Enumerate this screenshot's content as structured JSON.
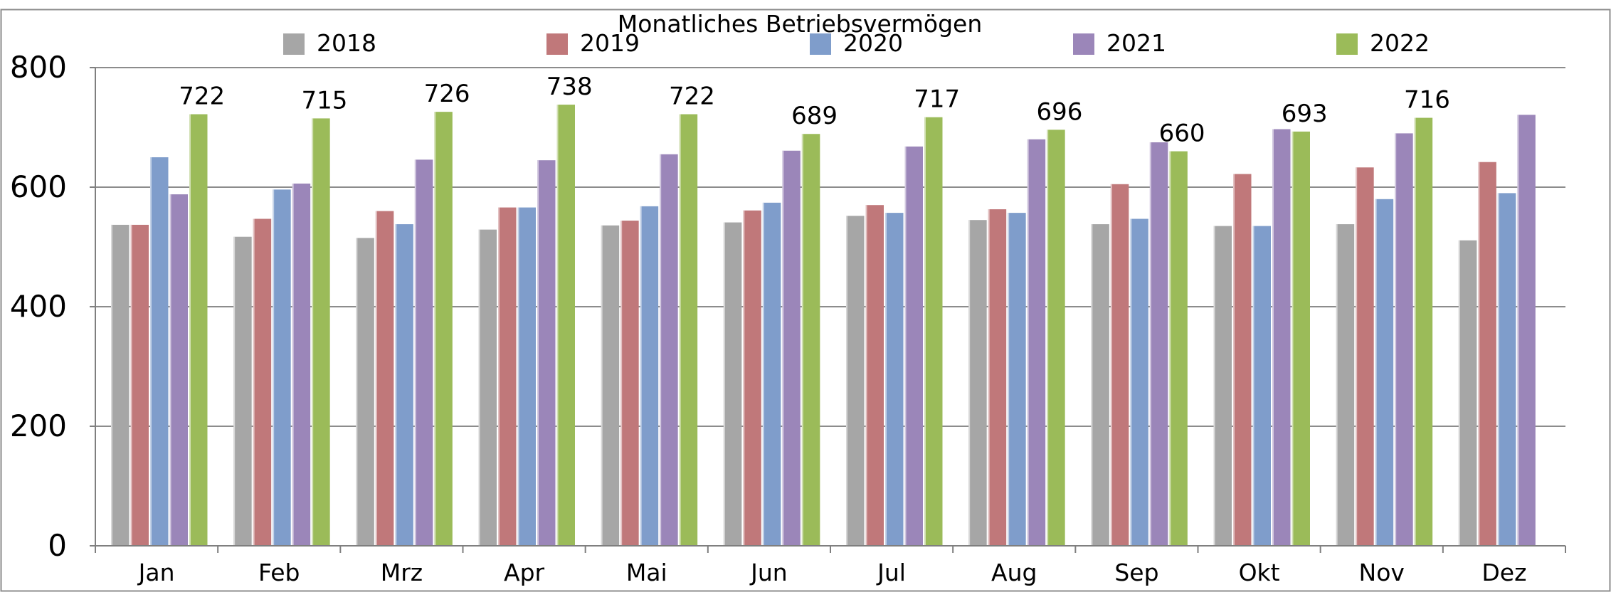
{
  "chart_data": {
    "type": "bar",
    "title": "Monatliches Betriebsvermögen",
    "xlabel": "",
    "ylabel": "",
    "ylim": [
      0,
      800
    ],
    "yticks": [
      0,
      200,
      400,
      600,
      800
    ],
    "grid": true,
    "legend_position": "top",
    "categories": [
      "Jan",
      "Feb",
      "Mrz",
      "Apr",
      "Mai",
      "Jun",
      "Jul",
      "Aug",
      "Sep",
      "Okt",
      "Nov",
      "Dez"
    ],
    "series": [
      {
        "name": "2018",
        "color": "#a6a6a6",
        "values": [
          537,
          517,
          515,
          529,
          536,
          541,
          552,
          545,
          538,
          535,
          538,
          511
        ]
      },
      {
        "name": "2019",
        "color": "#c0787a",
        "values": [
          537,
          547,
          560,
          566,
          544,
          561,
          570,
          563,
          605,
          622,
          633,
          642
        ]
      },
      {
        "name": "2020",
        "color": "#7f9dcb",
        "values": [
          650,
          596,
          538,
          566,
          568,
          574,
          557,
          557,
          547,
          535,
          580,
          590
        ]
      },
      {
        "name": "2021",
        "color": "#9b86b9",
        "values": [
          588,
          606,
          646,
          645,
          655,
          661,
          668,
          680,
          675,
          697,
          690,
          721
        ]
      },
      {
        "name": "2022",
        "color": "#9bbb59",
        "values": [
          722,
          715,
          726,
          738,
          722,
          689,
          717,
          696,
          660,
          693,
          716,
          null
        ]
      }
    ],
    "data_labels": {
      "series": "2022",
      "values": [
        "722",
        "715",
        "726",
        "738",
        "722",
        "689",
        "717",
        "696",
        "660",
        "693",
        "716",
        null
      ]
    }
  }
}
